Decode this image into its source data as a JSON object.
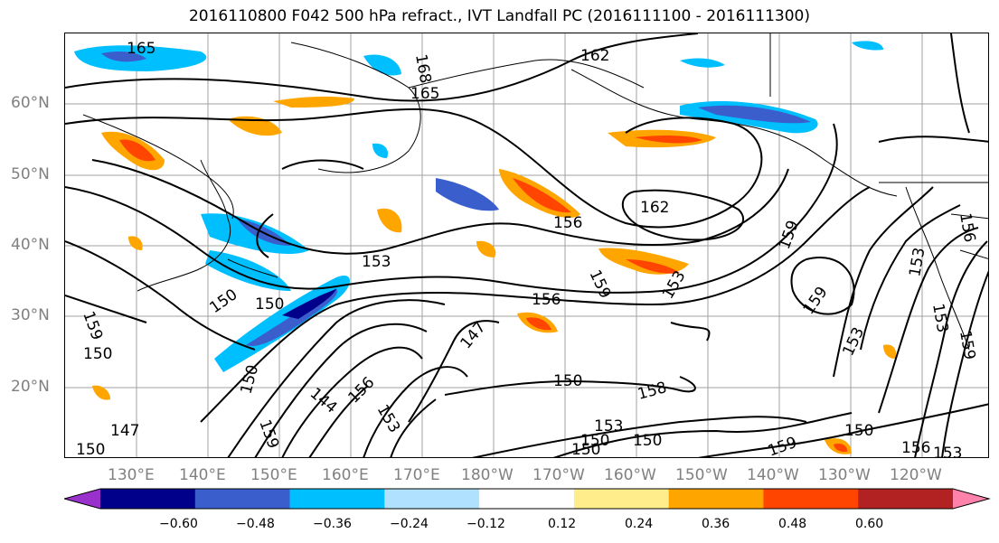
{
  "title": "2016110800 F042 500 hPa refract., IVT Landfall PC (2016111100 - 2016111300)",
  "lat_labels": [
    "60°N",
    "50°N",
    "40°N",
    "30°N",
    "20°N"
  ],
  "lon_labels": [
    "130°E",
    "140°E",
    "150°E",
    "160°E",
    "170°E",
    "180°W",
    "170°W",
    "160°W",
    "150°W",
    "140°W",
    "130°W",
    "120°W"
  ],
  "colorbar": {
    "colors": [
      "#9932CC",
      "#00008B",
      "#3A5FCD",
      "#00BFFF",
      "#B0E2FF",
      "#FFFFFF",
      "#FFEC8B",
      "#FFA500",
      "#FF4500",
      "#B22222",
      "#FF82AB"
    ],
    "tick_labels": [
      "−0.60",
      "−0.48",
      "−0.36",
      "−0.24",
      "−0.12",
      "0.12",
      "0.24",
      "0.36",
      "0.48",
      "0.60"
    ]
  },
  "contour_labels": [
    "165",
    "168",
    "165",
    "162",
    "156",
    "162",
    "159",
    "153",
    "150",
    "156",
    "159",
    "153",
    "159",
    "153",
    "150",
    "147",
    "150",
    "158",
    "153",
    "150",
    "150",
    "159",
    "150",
    "156",
    "153",
    "159",
    "147",
    "150",
    "150",
    "144",
    "156",
    "153",
    "150",
    "159",
    "150",
    "153",
    "159",
    "153",
    "156"
  ]
}
